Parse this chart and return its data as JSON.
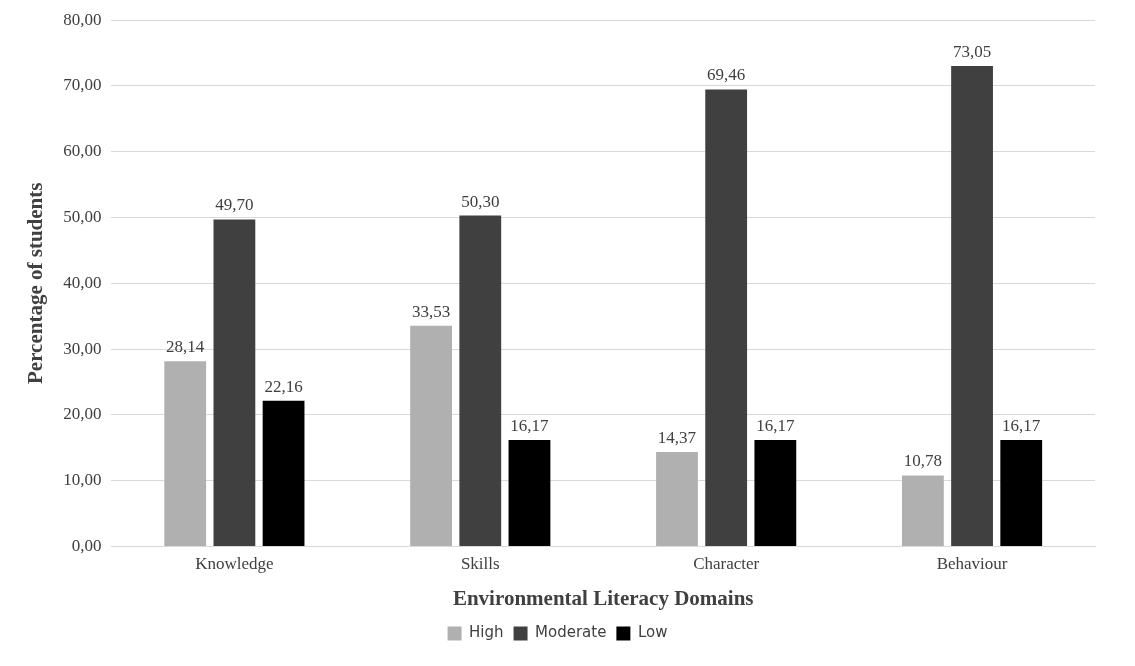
{
  "chart_data": {
    "type": "bar",
    "xlabel": "Environmental Literacy Domains",
    "ylabel": "Percentage of students",
    "categories": [
      "Knowledge",
      "Skills",
      "Character",
      "Behaviour"
    ],
    "series": [
      {
        "name": "High",
        "color": "#b0b0b0",
        "values": [
          28.14,
          33.53,
          14.37,
          10.78
        ],
        "value_labels": [
          "28,14",
          "33,53",
          "14,37",
          "10,78"
        ]
      },
      {
        "name": "Moderate",
        "color": "#404040",
        "values": [
          49.7,
          50.3,
          69.46,
          73.05
        ],
        "value_labels": [
          "49,70",
          "50,30",
          "69,46",
          "73,05"
        ]
      },
      {
        "name": "Low",
        "color": "#000000",
        "values": [
          22.16,
          16.17,
          16.17,
          16.17
        ],
        "value_labels": [
          "22,16",
          "16,17",
          "16,17",
          "16,17"
        ]
      }
    ],
    "ylim": [
      0,
      80
    ],
    "yticks": [
      {
        "value": 0,
        "label": "0,00"
      },
      {
        "value": 10,
        "label": "10,00"
      },
      {
        "value": 20,
        "label": "20,00"
      },
      {
        "value": 30,
        "label": "30,00"
      },
      {
        "value": 40,
        "label": "40,00"
      },
      {
        "value": 50,
        "label": "50,00"
      },
      {
        "value": 60,
        "label": "60,00"
      },
      {
        "value": 70,
        "label": "70,00"
      },
      {
        "value": 80,
        "label": "80,00"
      }
    ],
    "grid": "y",
    "legend": "bottom"
  }
}
